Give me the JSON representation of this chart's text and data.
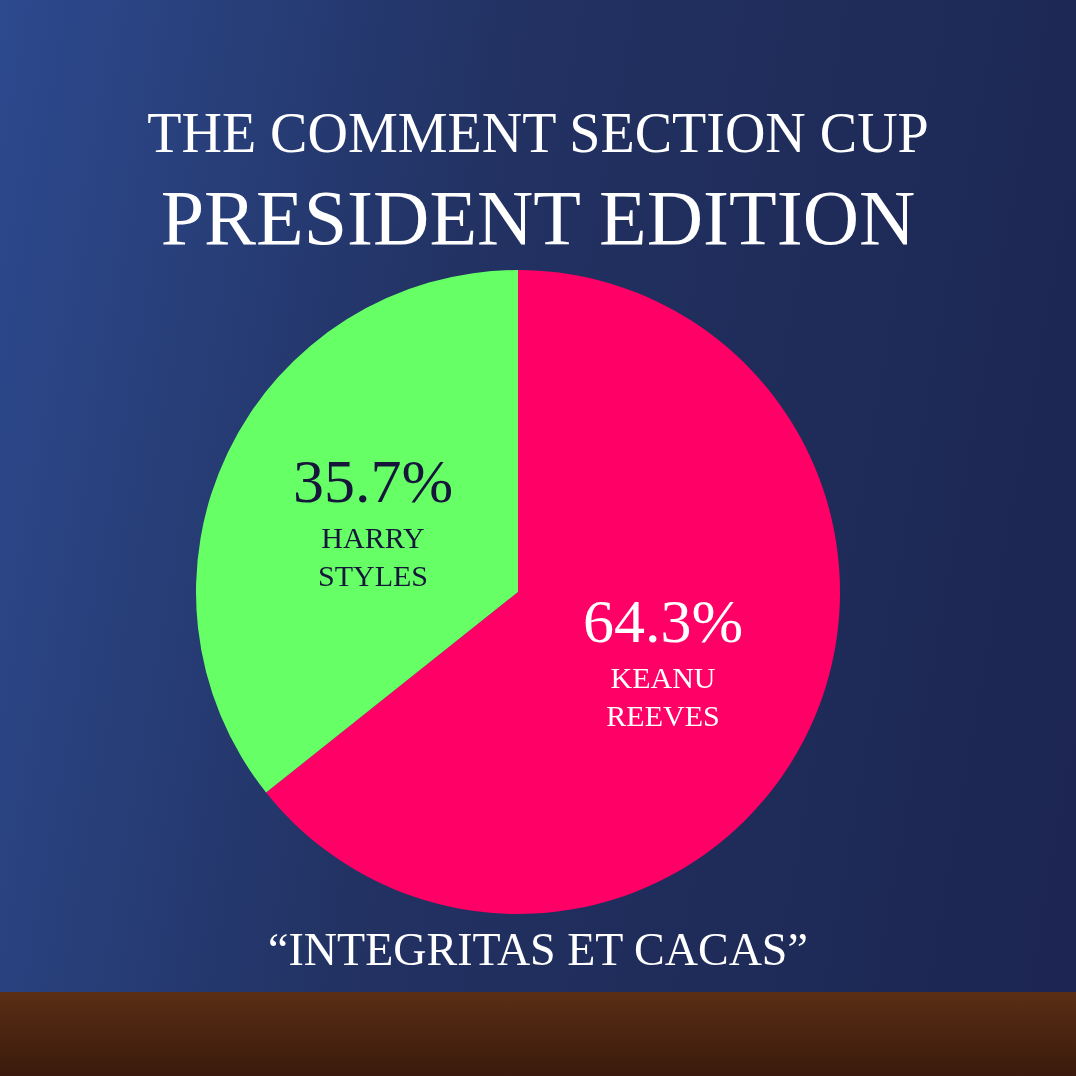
{
  "chart_data": {
    "type": "pie",
    "title": "THE COMMENT SECTION CUP",
    "subtitle": "PRESIDENT EDITION",
    "categories": [
      "KEANU REEVES",
      "HARRY STYLES"
    ],
    "values": [
      64.3,
      35.7
    ],
    "colors": [
      "#ff0066",
      "#66ff66"
    ],
    "value_labels": [
      "64.3%",
      "35.7%"
    ],
    "annotations": [
      "“INTEGRITAS ET CACAS”"
    ]
  }
}
